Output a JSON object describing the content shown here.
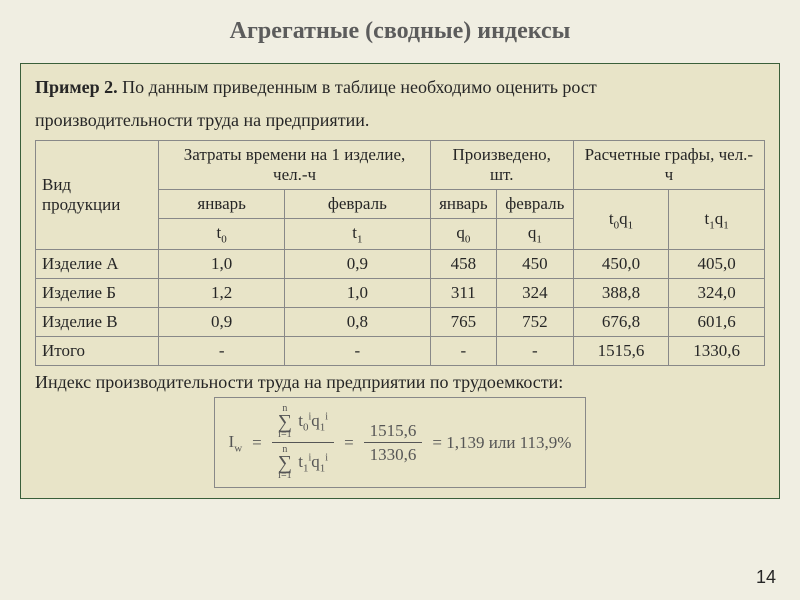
{
  "title": "Агрегатные (сводные) индексы",
  "example": {
    "label": "Пример 2.",
    "text1": " По данным приведенным в таблице необходимо оценить рост",
    "text2": "производительности труда на предприятии."
  },
  "table": {
    "header": {
      "product": "Вид продукции",
      "time_group": "Затраты времени на 1 изделие, чел.-ч",
      "produced_group": "Произведено, шт.",
      "calc_group": "Расчетные графы, чел.- ч",
      "jan": "январь",
      "feb": "февраль",
      "t0": "t",
      "t0_sub": "0",
      "t1": "t",
      "t1_sub": "1",
      "q0": "q",
      "q0_sub": "0",
      "q1": "q",
      "q1_sub": "1",
      "t0q1_a": "t",
      "t0q1_a_sub": "0",
      "t0q1_b": "q",
      "t0q1_b_sub": "1",
      "t1q1_a": "t",
      "t1q1_a_sub": "1",
      "t1q1_b": "q",
      "t1q1_b_sub": "1"
    },
    "rows": [
      {
        "name": "Изделие А",
        "t0": "1,0",
        "t1": "0,9",
        "q0": "458",
        "q1": "450",
        "c1": "450,0",
        "c2": "405,0"
      },
      {
        "name": "Изделие Б",
        "t0": "1,2",
        "t1": "1,0",
        "q0": "311",
        "q1": "324",
        "c1": "388,8",
        "c2": "324,0"
      },
      {
        "name": "Изделие В",
        "t0": "0,9",
        "t1": "0,8",
        "q0": "765",
        "q1": "752",
        "c1": "676,8",
        "c2": "601,6"
      },
      {
        "name": "Итого",
        "t0": "-",
        "t1": "-",
        "q0": "-",
        "q1": "-",
        "c1": "1515,6",
        "c2": "1330,6"
      }
    ]
  },
  "caption": "Индекс производительности труда на предприятии по трудоемкости:",
  "formula": {
    "lhs": "I",
    "lhs_sub": "w",
    "eq": "=",
    "num_sum_top": "n",
    "num_sum_bot": "i=1",
    "num_expr_a": "t",
    "num_expr_a_sub": "0",
    "num_expr_a_sup": "i",
    "num_expr_b": "q",
    "num_expr_b_sub": "1",
    "num_expr_b_sup": "i",
    "den_expr_a": "t",
    "den_expr_a_sub": "1",
    "den_expr_a_sup": "i",
    "den_expr_b": "q",
    "den_expr_b_sub": "1",
    "den_expr_b_sup": "i",
    "val_num": "1515,6",
    "val_den": "1330,6",
    "result": "= 1,139  или  113,9%"
  },
  "page_number": "14",
  "style": {
    "bg": "#f0eee2",
    "panel_bg": "#e8e4c8",
    "panel_border": "#3a5f3a"
  }
}
